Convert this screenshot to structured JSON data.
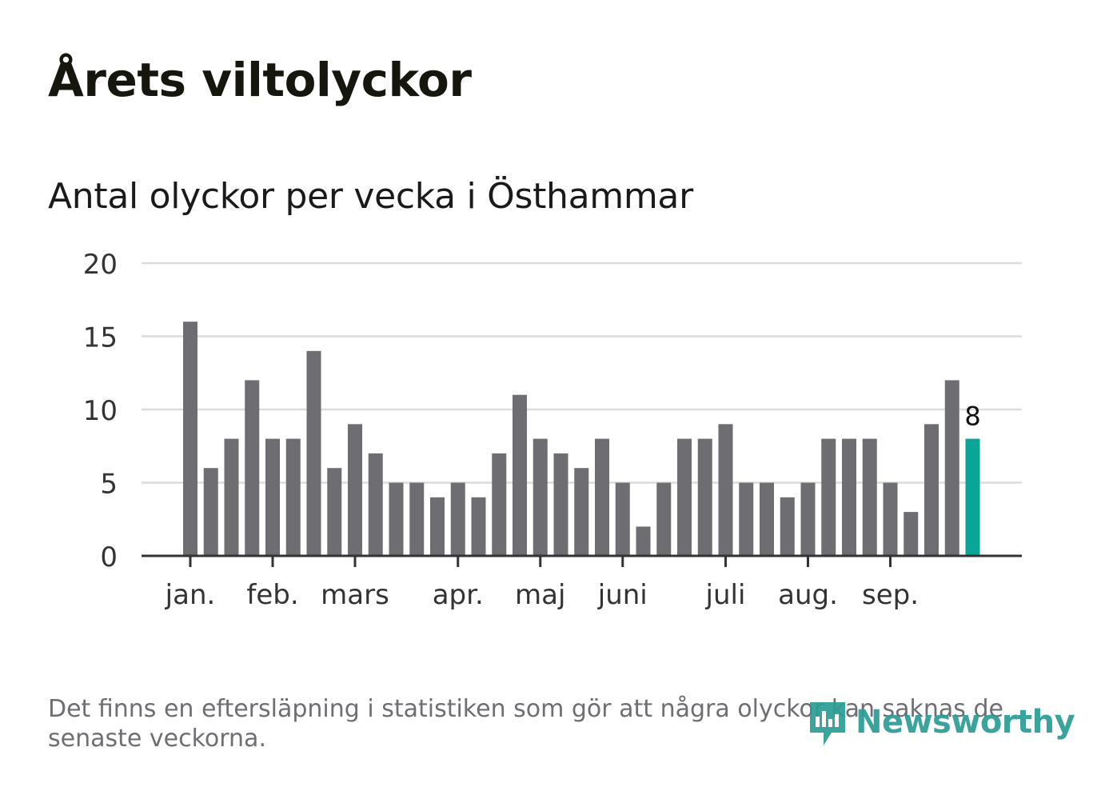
{
  "title": "Årets viltolyckor",
  "subtitle": "Antal olyckor per vecka i Östhammar",
  "footnote": "Det finns en eftersläpning i statistiken som gör att några olyckor kan saknas de senaste veckorna.",
  "brand": {
    "name": "Newsworthy",
    "color": "#2a9c95",
    "icon": "newsworthy-logo-icon"
  },
  "colors": {
    "bar": "#6e6d72",
    "highlight": "#0ba598",
    "grid": "#dcdcdc",
    "axis": "#333333",
    "tick_text": "#333333"
  },
  "chart_data": {
    "type": "bar",
    "title": "Antal olyckor per vecka i Östhammar",
    "xlabel": "",
    "ylabel": "",
    "ylim": [
      0,
      20
    ],
    "yticks": [
      0,
      5,
      10,
      15,
      20
    ],
    "grid": true,
    "values": [
      16,
      6,
      8,
      12,
      8,
      8,
      14,
      6,
      9,
      7,
      5,
      5,
      4,
      5,
      4,
      7,
      11,
      8,
      7,
      6,
      8,
      5,
      2,
      5,
      8,
      8,
      9,
      5,
      5,
      4,
      5,
      8,
      8,
      8,
      5,
      3,
      9,
      12,
      8
    ],
    "highlight_index": 38,
    "highlight_label": "8",
    "month_labels": [
      {
        "label": "jan.",
        "index": 0
      },
      {
        "label": "feb.",
        "index": 4
      },
      {
        "label": "mars",
        "index": 8
      },
      {
        "label": "apr.",
        "index": 13
      },
      {
        "label": "maj",
        "index": 17
      },
      {
        "label": "juni",
        "index": 21
      },
      {
        "label": "juli",
        "index": 26
      },
      {
        "label": "aug.",
        "index": 30
      },
      {
        "label": "sep.",
        "index": 34
      }
    ]
  }
}
